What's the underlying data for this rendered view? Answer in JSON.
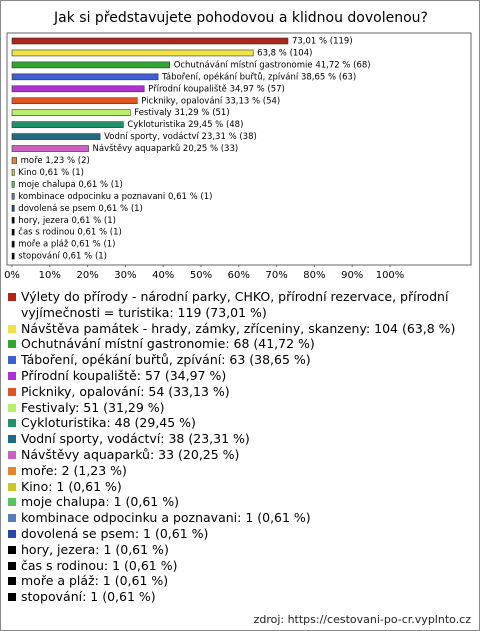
{
  "chart_data": {
    "type": "bar",
    "orientation": "horizontal",
    "title": "Jak si představujete pohodovou a klidnou dovolenou?",
    "categories": [
      "Výlety do přírody - národní parky, CHKO, přírodní rezervace, přírodní vyjímečnosti = turistika: 119 (73,01 %)",
      "Návštěva památek - hrady, zámky, zříceniny, skanzeny: 104 (63,8 %)",
      "Ochutnávání místní gastronomie: 68 (41,72 %)",
      "Táboření, opékání buřtů, zpívání: 63 (38,65 %)",
      "Přírodní koupaliště: 57 (34,97 %)",
      "Pickniky, opalování: 54 (33,13 %)",
      "Festivaly: 51 (31,29 %)",
      "Cykloturistika: 48 (29,45 %)",
      "Vodní sporty, vodáctví: 38 (23,31 %)",
      "Návštěvy aquaparků: 33 (20,25 %)",
      "moře: 2 (1,23 %)",
      "Kino: 1 (0,61 %)",
      "moje chalupa: 1 (0,61 %)",
      "kombinace odpocinku a poznavani: 1 (0,61 %)",
      "dovolená se psem: 1 (0,61 %)",
      "hory, jezera: 1 (0,61 %)",
      "čas s rodinou: 1 (0,61 %)",
      "moře a pláž: 1 (0,61 %)",
      "stopování: 1 (0,61 %)"
    ],
    "values": [
      73.01,
      63.8,
      41.72,
      38.65,
      34.97,
      33.13,
      31.29,
      29.45,
      23.31,
      20.25,
      1.23,
      0.61,
      0.61,
      0.61,
      0.61,
      0.61,
      0.61,
      0.61,
      0.61
    ],
    "value_labels": [
      "73,01 % (119)",
      "63,8 % (104)",
      "Ochutnávání místní gastronomie 41,72 % (68)",
      "Táboření, opékání buřtů, zpívání 38,65 % (63)",
      "Přírodní koupaliště 34,97 % (57)",
      "Pickniky, opalování 33,13 % (54)",
      "Festivaly 31,29 % (51)",
      "Cykloturistika 29,45 % (48)",
      "Vodní sporty, vodáctví 23,31 % (38)",
      "Návštěvy aquaparků 20,25 % (33)",
      "moře 1,23 % (2)",
      "Kino 0,61 % (1)",
      "moje chalupa 0,61 % (1)",
      "kombinace odpocinku a poznavani 0,61 % (1)",
      "dovolená se psem 0,61 % (1)",
      "hory, jezera 0,61 % (1)",
      "čas s rodinou 0,61 % (1)",
      "moře a pláž 0,61 % (1)",
      "stopování 0,61 % (1)"
    ],
    "colors": [
      "#b22418",
      "#f2e24a",
      "#2ea82e",
      "#3d5fd0",
      "#b030d8",
      "#e05424",
      "#b8f06a",
      "#229068",
      "#1f6a88",
      "#c462c8",
      "#e08630",
      "#c8c828",
      "#58c458",
      "#5a7ab8",
      "#2846a8",
      "#000000",
      "#000000",
      "#000000",
      "#000000"
    ],
    "xlim": [
      0,
      100
    ],
    "xticks": [
      {
        "value": 0,
        "label": "0%"
      },
      {
        "value": 10,
        "label": "10%"
      },
      {
        "value": 20,
        "label": "20%"
      },
      {
        "value": 30,
        "label": "30%"
      },
      {
        "value": 40,
        "label": "40%"
      },
      {
        "value": 50,
        "label": "50%"
      },
      {
        "value": 60,
        "label": "60%"
      },
      {
        "value": 70,
        "label": "70%"
      },
      {
        "value": 80,
        "label": "80%"
      },
      {
        "value": 90,
        "label": "90%"
      },
      {
        "value": 100,
        "label": "100%"
      }
    ],
    "source": "zdroj: https://cestovani-po-cr.vyplnto.cz"
  }
}
